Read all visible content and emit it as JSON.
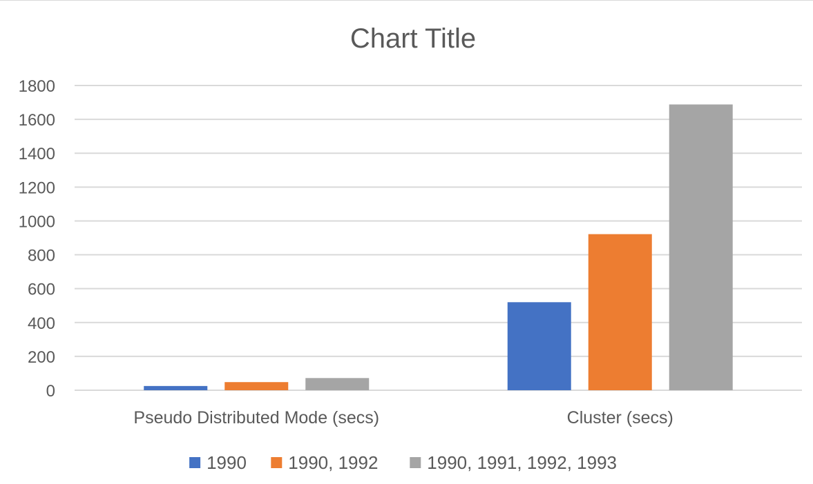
{
  "chart_data": {
    "type": "bar",
    "title": "Chart Title",
    "xlabel": "",
    "ylabel": "",
    "categories": [
      "Pseudo Distributed Mode (secs)",
      "Cluster (secs)"
    ],
    "series": [
      {
        "name": "1990",
        "values": [
          25,
          520
        ],
        "color": "#4472C4"
      },
      {
        "name": "1990, 1992",
        "values": [
          48,
          922
        ],
        "color": "#ED7D31"
      },
      {
        "name": "1990, 1991, 1992, 1993",
        "values": [
          72,
          1688
        ],
        "color": "#A5A5A5"
      }
    ],
    "ylim": [
      0,
      1800
    ],
    "yticks": [
      0,
      200,
      400,
      600,
      800,
      1000,
      1200,
      1400,
      1600,
      1800
    ],
    "grid": true,
    "legend_position": "bottom"
  }
}
